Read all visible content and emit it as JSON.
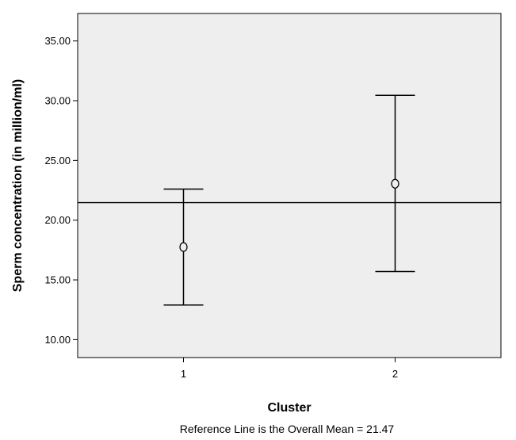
{
  "chart_data": {
    "type": "errorbar",
    "xlabel": "Cluster",
    "ylabel": "Sperm concentration (in million/ml)",
    "categories": [
      "1",
      "2"
    ],
    "series": [
      {
        "points": [
          {
            "x": "1",
            "mean": 17.75,
            "lower": 12.9,
            "upper": 22.6
          },
          {
            "x": "2",
            "mean": 23.05,
            "lower": 15.7,
            "upper": 30.45
          }
        ]
      }
    ],
    "reference_line": {
      "value": 21.47,
      "note": "Reference Line is the Overall Mean = 21.47"
    },
    "ylim": [
      8.5,
      37.3
    ],
    "y_ticks": [
      "10.00",
      "15.00",
      "20.00",
      "25.00",
      "30.00",
      "35.00"
    ],
    "plot_background": "#eeeeee",
    "line_color": "#000000",
    "grid": false
  }
}
